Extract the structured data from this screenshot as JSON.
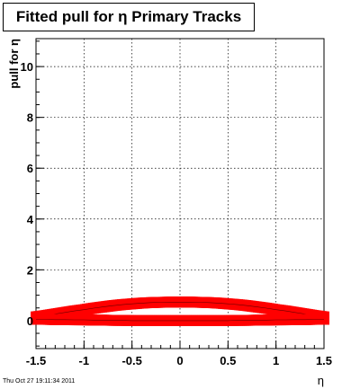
{
  "chart_data": {
    "type": "scatter",
    "title": "Fitted pull for η  Primary Tracks",
    "xlabel": "η",
    "ylabel": "pull for η",
    "xlim": [
      -1.5,
      1.5
    ],
    "ylim": [
      -1.1,
      11.1
    ],
    "x_ticks": [
      "-1.5",
      "-1",
      "-0.5",
      "0",
      "0.5",
      "1",
      "1.5"
    ],
    "y_ticks": [
      "0",
      "2",
      "4",
      "6",
      "8",
      "10"
    ],
    "grid": true,
    "marker_color": "#ff0000",
    "series": [
      {
        "x": [
          -1.5,
          -1.4,
          -1.3,
          -1.2,
          -1.1,
          -1.0,
          -0.9,
          -0.8,
          -0.7,
          -0.6,
          -0.5,
          -0.4,
          -0.3,
          -0.2,
          -0.1,
          0.0,
          0.1,
          0.2,
          0.3,
          0.4,
          0.5,
          0.6,
          0.7,
          0.8,
          0.9,
          1.0,
          1.1,
          1.2,
          1.3,
          1.4,
          1.5
        ],
        "y": [
          0.15,
          0.2,
          0.26,
          0.32,
          0.38,
          0.43,
          0.49,
          0.54,
          0.59,
          0.63,
          0.66,
          0.69,
          0.71,
          0.72,
          0.73,
          0.73,
          0.73,
          0.72,
          0.71,
          0.69,
          0.66,
          0.63,
          0.59,
          0.54,
          0.49,
          0.43,
          0.38,
          0.32,
          0.26,
          0.2,
          0.15
        ]
      },
      {
        "x": [
          -1.5,
          -1.4,
          -1.3,
          -1.2,
          -1.1,
          -1.0,
          -0.9,
          -0.8,
          -0.7,
          -0.6,
          -0.5,
          -0.4,
          -0.3,
          -0.2,
          -0.1,
          0.0,
          0.1,
          0.2,
          0.3,
          0.4,
          0.5,
          0.6,
          0.7,
          0.8,
          0.9,
          1.0,
          1.1,
          1.2,
          1.3,
          1.4,
          1.5
        ],
        "y": [
          0.05,
          0.05,
          0.04,
          0.04,
          0.03,
          0.03,
          0.02,
          0.02,
          0.01,
          0.01,
          0.0,
          0.0,
          0.0,
          0.0,
          0.0,
          0.0,
          0.0,
          0.0,
          0.0,
          0.0,
          0.0,
          0.01,
          0.01,
          0.02,
          0.02,
          0.03,
          0.03,
          0.04,
          0.04,
          0.05,
          0.05
        ]
      }
    ]
  },
  "footer": "Thu Oct 27 19:11:34 2011"
}
